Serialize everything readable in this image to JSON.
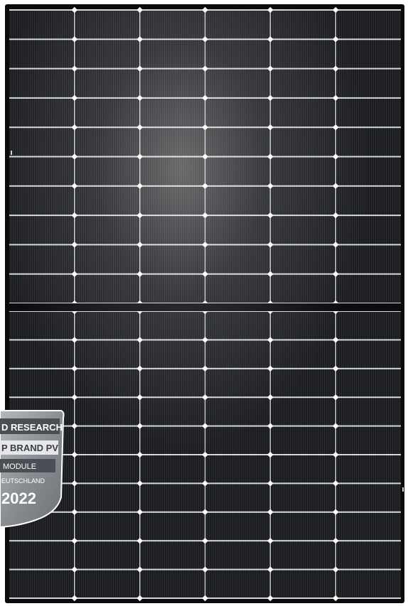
{
  "product": {
    "type": "solar-panel",
    "layout": "half-cut cells, 6 columns x 20 rows (two halves of 10)",
    "frame_color": "#0b0b0c",
    "cell_color": "#16181b",
    "busbar_color": "#e9ecef"
  },
  "badge": {
    "line1": "D RESEARCH",
    "line2": "P BRAND PV",
    "line3": "MODULE",
    "line4": "EUTSCHLAND",
    "year": "2022",
    "shield_color": "#8c9095",
    "band_dark_color": "#4b4f55",
    "band_light_color": "#e6e7e9"
  }
}
